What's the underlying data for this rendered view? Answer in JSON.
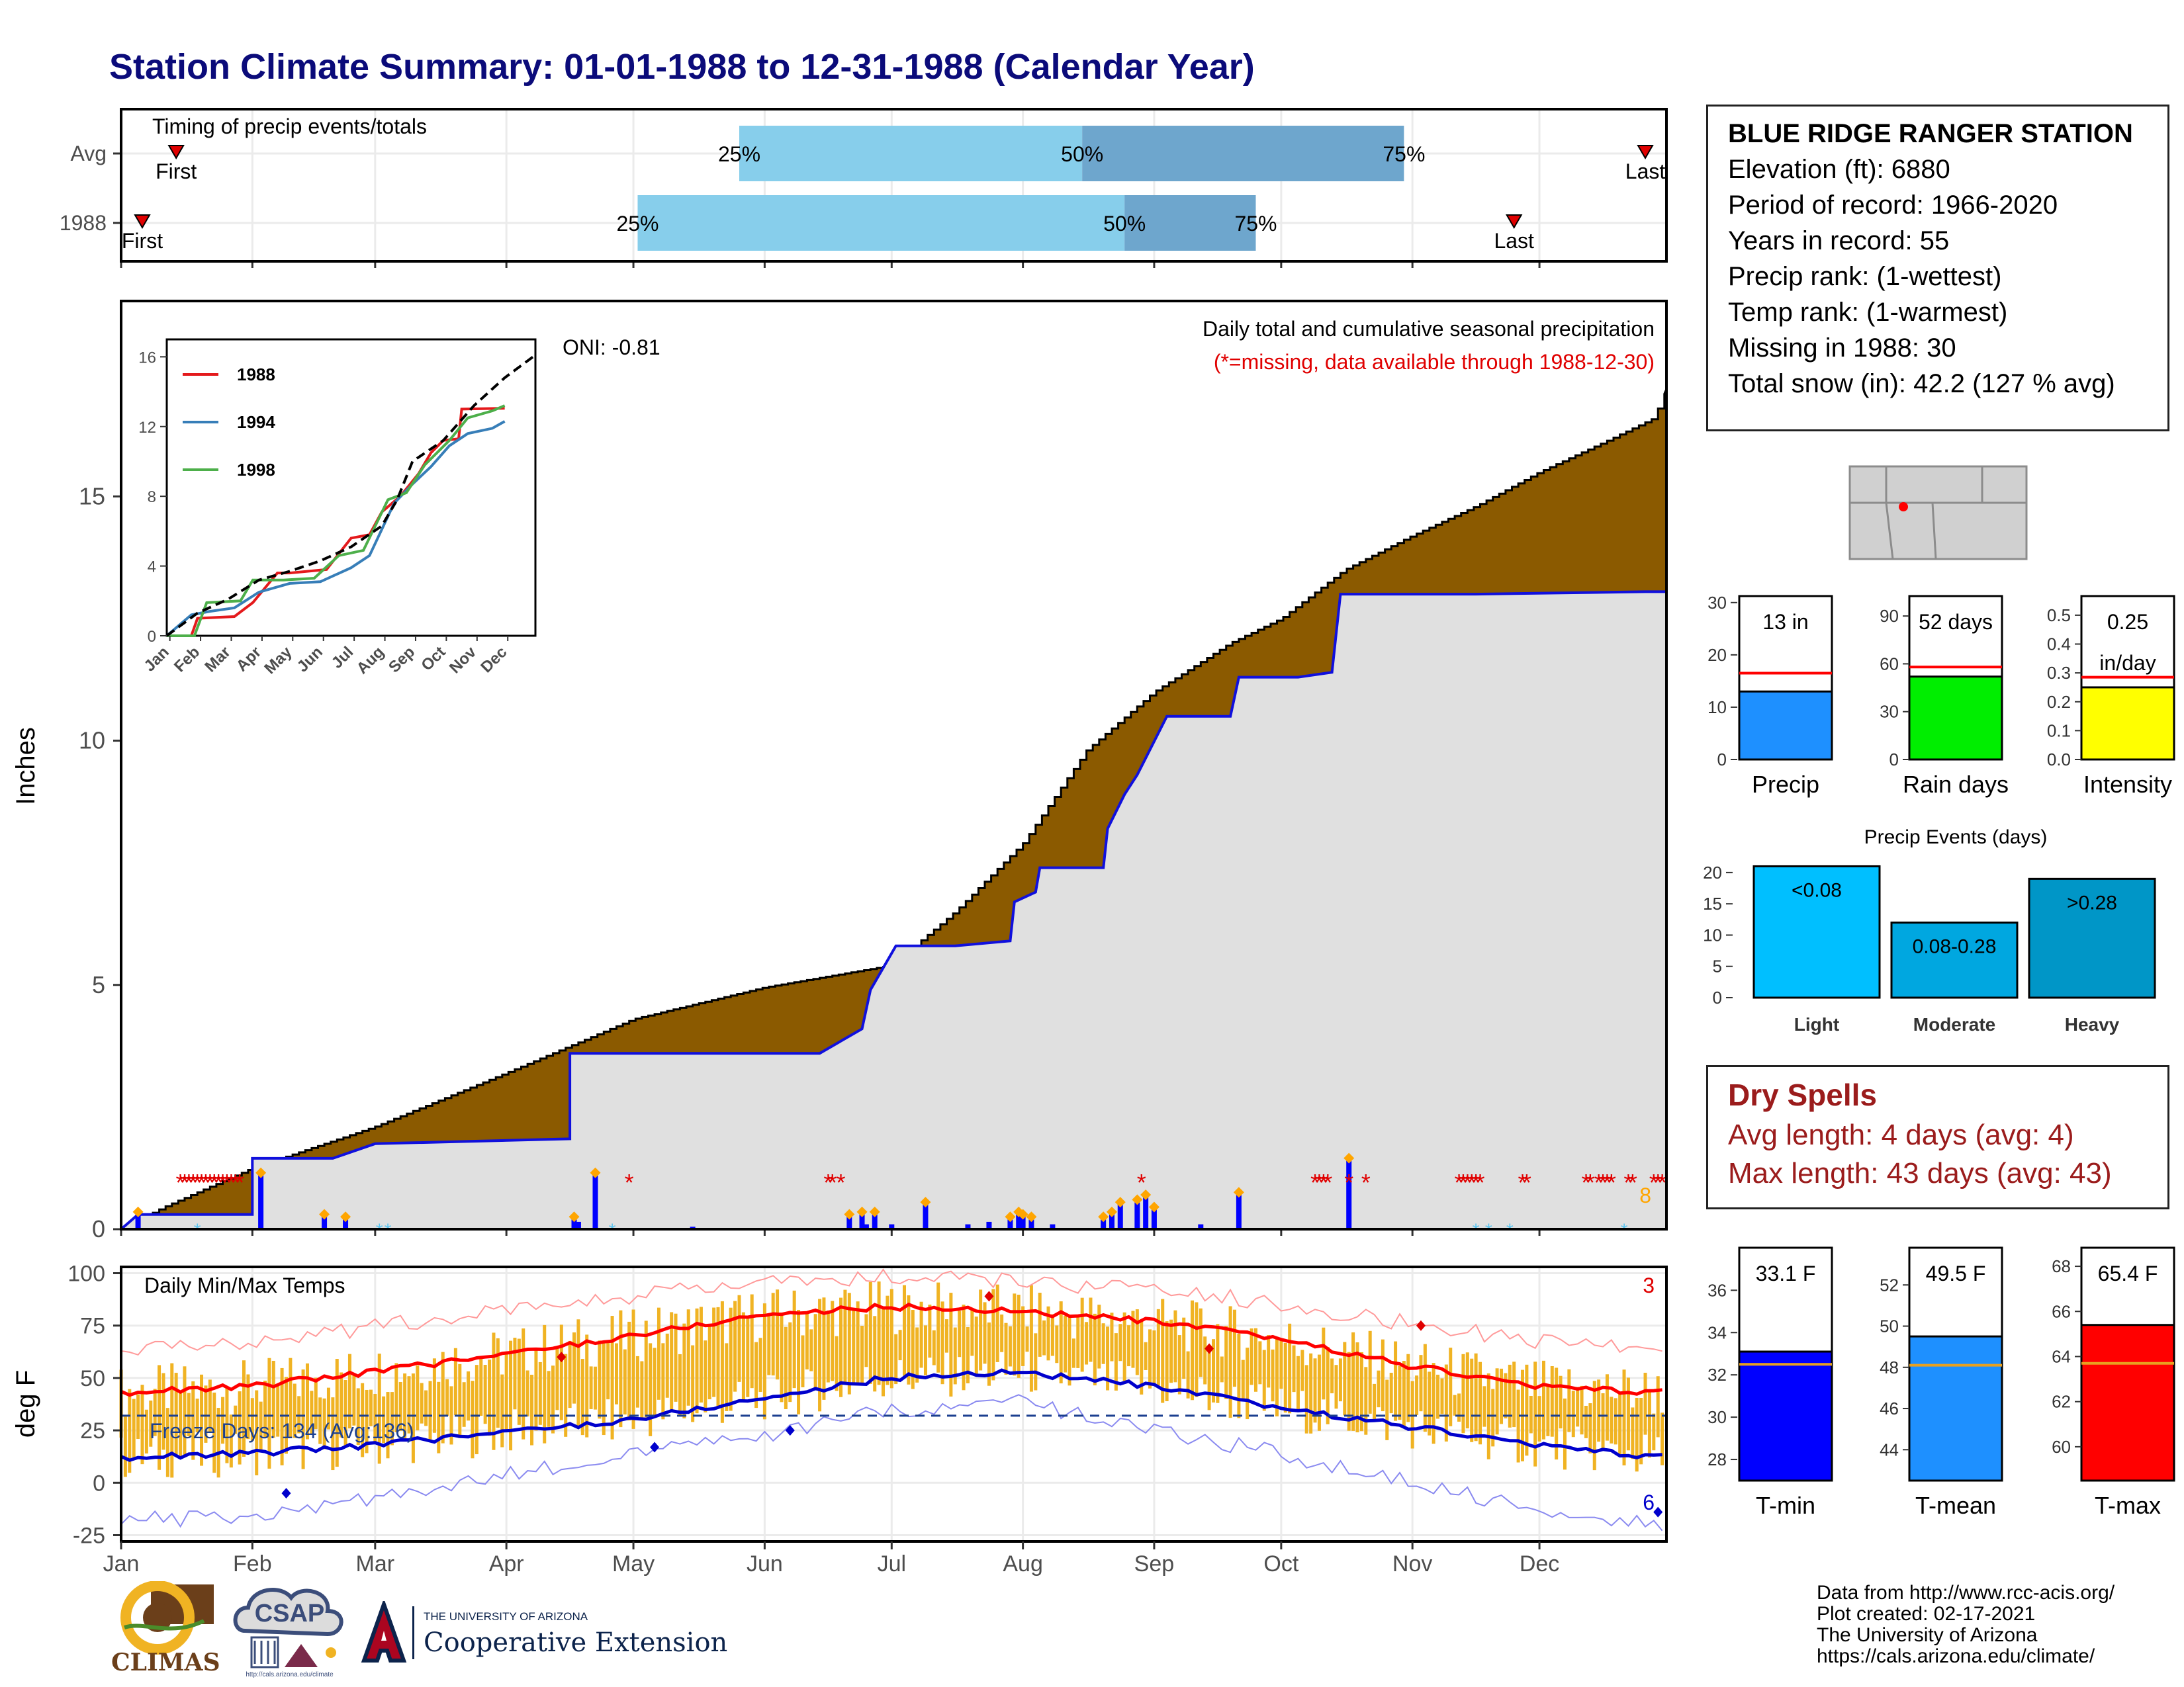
{
  "title": "Station Climate Summary: 01-01-1988 to 12-31-1988 (Calendar Year)",
  "station": {
    "name": "BLUE RIDGE RANGER STATION",
    "rows": [
      "Elevation (ft): 6880",
      "Period of record: 1966-2020",
      "Years in record: 55",
      "Precip rank:  (1-wettest)",
      "Temp rank:  (1-warmest)",
      "Missing in 1988: 30",
      "Total snow (in): 42.2 (127 % avg)"
    ]
  },
  "dry_spells": {
    "title": "Dry Spells",
    "avg_length": "Avg length: 4 days (avg: 4)",
    "max_length": "Max length: 43 days (avg: 43)"
  },
  "credits": [
    "Data from http://www.rcc-acis.org/",
    "Plot created: 02-17-2021",
    "The University of Arizona",
    "https://cals.arizona.edu/climate/"
  ],
  "logos": {
    "climas": "CLIMAS",
    "csap": "CSAP",
    "csap_url": "http://cals.arizona.edu/climate",
    "ua_small": "THE UNIVERSITY OF ARIZONA",
    "ua_big": "Cooperative Extension"
  },
  "colors": {
    "title": "#0b0b7a",
    "cumulative_fill": "#8b5a00",
    "avg_fill": "#e0e0e0",
    "cumulative_line": "#1010dd",
    "quartile_light": "#87ceeb",
    "quartile_dark": "#6ea6cd",
    "temp_bar": "#f0b323",
    "tmax": "#ff0000",
    "tmin": "#0000cc"
  },
  "months": [
    "Jan",
    "Feb",
    "Mar",
    "Apr",
    "May",
    "Jun",
    "Jul",
    "Aug",
    "Sep",
    "Oct",
    "Nov",
    "Dec"
  ],
  "chart_data": [
    {
      "id": "timing",
      "type": "bar",
      "title": "Timing of precip events/totals",
      "rows": [
        "Avg",
        "1988"
      ],
      "x": "day of year",
      "avg": {
        "first": 13,
        "q25": 146,
        "q50": 227,
        "q75": 303,
        "last": 360
      },
      "y1988": {
        "first": 5,
        "q25": 122,
        "q50": 237,
        "q75": 268,
        "last": 329
      },
      "marker_labels": {
        "first": "First",
        "last": "Last",
        "q25": "25%",
        "q50": "50%",
        "q75": "75%"
      }
    },
    {
      "id": "precip",
      "type": "area",
      "ylabel": "Inches",
      "ylim": [
        0,
        19
      ],
      "yticks": [
        0,
        5,
        10,
        15
      ],
      "annotation": "Daily total and cumulative seasonal precipitation",
      "missing_note": "(*=missing, data available through 1988-12-30)",
      "oni": "ONI: -0.81",
      "corner_label": "8",
      "series": [
        {
          "name": "avg_cumulative",
          "points": [
            [
              0,
              0
            ],
            [
              10,
              0.45
            ],
            [
              31,
              1.25
            ],
            [
              60,
              2.1
            ],
            [
              91,
              3.2
            ],
            [
              121,
              4.3
            ],
            [
              152,
              4.95
            ],
            [
              182,
              5.4
            ],
            [
              197,
              6.5
            ],
            [
              213,
              7.9
            ],
            [
              228,
              9.8
            ],
            [
              244,
              11.0
            ],
            [
              262,
              12.0
            ],
            [
              274,
              12.5
            ],
            [
              289,
              13.5
            ],
            [
              305,
              14.2
            ],
            [
              320,
              14.8
            ],
            [
              335,
              15.5
            ],
            [
              350,
              16.1
            ],
            [
              362,
              16.6
            ],
            [
              365,
              17.2
            ]
          ]
        },
        {
          "name": "cumulative_1988",
          "points": [
            [
              0,
              0
            ],
            [
              4,
              0.3
            ],
            [
              31,
              0.3
            ],
            [
              31,
              1.45
            ],
            [
              50,
              1.45
            ],
            [
              60,
              1.75
            ],
            [
              106,
              1.85
            ],
            [
              106,
              3.6
            ],
            [
              165,
              3.6
            ],
            [
              175,
              4.1
            ],
            [
              177,
              4.9
            ],
            [
              183,
              5.8
            ],
            [
              197,
              5.8
            ],
            [
              210,
              5.9
            ],
            [
              211,
              6.7
            ],
            [
              216,
              6.9
            ],
            [
              217,
              7.4
            ],
            [
              232,
              7.4
            ],
            [
              233,
              8.2
            ],
            [
              237,
              8.9
            ],
            [
              240,
              9.3
            ],
            [
              247,
              10.5
            ],
            [
              262,
              10.5
            ],
            [
              264,
              11.3
            ],
            [
              278,
              11.3
            ],
            [
              286,
              11.4
            ],
            [
              288,
              13.0
            ],
            [
              320,
              13.0
            ],
            [
              360,
              13.05
            ],
            [
              365,
              13.05
            ]
          ]
        }
      ],
      "daily_bars": [
        [
          4,
          0.3
        ],
        [
          33,
          1.1
        ],
        [
          48,
          0.25
        ],
        [
          53,
          0.2
        ],
        [
          107,
          0.2
        ],
        [
          108,
          0.15
        ],
        [
          112,
          1.1
        ],
        [
          135,
          0.05
        ],
        [
          172,
          0.25
        ],
        [
          175,
          0.3
        ],
        [
          176,
          0.1
        ],
        [
          178,
          0.3
        ],
        [
          182,
          0.1
        ],
        [
          190,
          0.5
        ],
        [
          200,
          0.1
        ],
        [
          205,
          0.15
        ],
        [
          210,
          0.2
        ],
        [
          212,
          0.3
        ],
        [
          213,
          0.25
        ],
        [
          215,
          0.2
        ],
        [
          220,
          0.1
        ],
        [
          232,
          0.2
        ],
        [
          234,
          0.3
        ],
        [
          236,
          0.5
        ],
        [
          240,
          0.55
        ],
        [
          242,
          0.65
        ],
        [
          244,
          0.4
        ],
        [
          255,
          0.1
        ],
        [
          264,
          0.7
        ],
        [
          290,
          1.4
        ]
      ],
      "missing_days": [
        14,
        15,
        16,
        17,
        18,
        19,
        20,
        21,
        22,
        23,
        24,
        25,
        26,
        27,
        28,
        120,
        167,
        168,
        170,
        241,
        282,
        283,
        284,
        285,
        290,
        294,
        316,
        317,
        318,
        319,
        320,
        321,
        331,
        332,
        346,
        347,
        349,
        350,
        351,
        352,
        356,
        357,
        362,
        363,
        364
      ],
      "snow_days": [
        18,
        61,
        63,
        116,
        320,
        323,
        328,
        355
      ]
    },
    {
      "id": "inset",
      "type": "line",
      "title": "",
      "xticks": [
        "Jan",
        "Feb",
        "Mar",
        "Apr",
        "May",
        "Jun",
        "Jul",
        "Aug",
        "Sep",
        "Oct",
        "Nov",
        "Dec"
      ],
      "yticks": [
        0,
        4,
        8,
        12,
        16
      ],
      "ylim": [
        0,
        17
      ],
      "series": [
        {
          "name": "1988",
          "color": "#e41a1c",
          "points": [
            [
              0,
              0
            ],
            [
              0.8,
              0
            ],
            [
              1.0,
              1.0
            ],
            [
              2.2,
              1.1
            ],
            [
              2.8,
              1.9
            ],
            [
              3.6,
              3.6
            ],
            [
              4.0,
              3.6
            ],
            [
              5.2,
              3.8
            ],
            [
              5.6,
              4.7
            ],
            [
              6.0,
              5.6
            ],
            [
              6.6,
              5.8
            ],
            [
              7.0,
              7.1
            ],
            [
              7.6,
              8.0
            ],
            [
              8.2,
              9.3
            ],
            [
              8.6,
              10.5
            ],
            [
              9.0,
              11.2
            ],
            [
              9.5,
              11.3
            ],
            [
              9.6,
              13.0
            ],
            [
              11.0,
              13.05
            ]
          ]
        },
        {
          "name": "1994",
          "color": "#377eb8",
          "points": [
            [
              0,
              0
            ],
            [
              0.8,
              1.2
            ],
            [
              1.4,
              1.4
            ],
            [
              2.2,
              1.6
            ],
            [
              3.0,
              2.5
            ],
            [
              4.0,
              3.0
            ],
            [
              5.0,
              3.1
            ],
            [
              6.0,
              3.9
            ],
            [
              6.6,
              4.6
            ],
            [
              7.4,
              7.6
            ],
            [
              8.0,
              8.7
            ],
            [
              8.6,
              9.7
            ],
            [
              9.2,
              10.9
            ],
            [
              9.8,
              11.6
            ],
            [
              10.6,
              11.9
            ],
            [
              11.0,
              12.3
            ]
          ]
        },
        {
          "name": "1998",
          "color": "#4daf4a",
          "points": [
            [
              0,
              0
            ],
            [
              0.9,
              0
            ],
            [
              1.3,
              1.9
            ],
            [
              2.4,
              2.0
            ],
            [
              2.8,
              3.2
            ],
            [
              3.8,
              3.2
            ],
            [
              4.8,
              3.3
            ],
            [
              5.6,
              4.6
            ],
            [
              6.4,
              4.9
            ],
            [
              7.2,
              7.8
            ],
            [
              7.8,
              8.2
            ],
            [
              8.4,
              9.8
            ],
            [
              9.2,
              11.2
            ],
            [
              9.8,
              12.5
            ],
            [
              10.6,
              12.9
            ],
            [
              11.0,
              13.2
            ]
          ]
        },
        {
          "name": "avg",
          "color": "#000000",
          "points": [
            [
              0,
              0
            ],
            [
              1.0,
              1.3
            ],
            [
              2.0,
              2.1
            ],
            [
              3.0,
              3.2
            ],
            [
              4.0,
              3.7
            ],
            [
              5.0,
              4.3
            ],
            [
              6.0,
              5.1
            ],
            [
              7.0,
              6.3
            ],
            [
              7.5,
              7.8
            ],
            [
              8.0,
              10.0
            ],
            [
              9.0,
              11.2
            ],
            [
              10.0,
              13.2
            ],
            [
              11.0,
              14.8
            ],
            [
              12.0,
              16.1
            ]
          ]
        }
      ]
    },
    {
      "id": "temps",
      "type": "line",
      "title": "Daily Min/Max Temps",
      "ylabel": "deg F",
      "ylim": [
        -28,
        103
      ],
      "yticks": [
        -25,
        0,
        25,
        50,
        75,
        100
      ],
      "freeze_label": "Freeze Days: 134 (Avg:136)",
      "freeze_line": 32,
      "corner_top": "3",
      "corner_bottom": "6",
      "avg_max": [
        [
          0,
          43
        ],
        [
          31,
          46
        ],
        [
          59,
          53
        ],
        [
          90,
          61
        ],
        [
          120,
          70
        ],
        [
          151,
          80
        ],
        [
          181,
          84
        ],
        [
          212,
          82
        ],
        [
          243,
          77
        ],
        [
          273,
          69
        ],
        [
          304,
          56
        ],
        [
          334,
          46
        ],
        [
          365,
          43
        ]
      ],
      "avg_min": [
        [
          0,
          12
        ],
        [
          31,
          14
        ],
        [
          59,
          18
        ],
        [
          90,
          24
        ],
        [
          120,
          30
        ],
        [
          151,
          40
        ],
        [
          181,
          50
        ],
        [
          212,
          53
        ],
        [
          243,
          46
        ],
        [
          273,
          36
        ],
        [
          304,
          27
        ],
        [
          334,
          18
        ],
        [
          365,
          12
        ]
      ],
      "record_max": [
        [
          0,
          62
        ],
        [
          31,
          68
        ],
        [
          59,
          74
        ],
        [
          90,
          82
        ],
        [
          120,
          89
        ],
        [
          151,
          95
        ],
        [
          181,
          98
        ],
        [
          212,
          96
        ],
        [
          243,
          92
        ],
        [
          273,
          86
        ],
        [
          304,
          76
        ],
        [
          334,
          68
        ],
        [
          365,
          64
        ]
      ],
      "record_min": [
        [
          0,
          -18
        ],
        [
          31,
          -16
        ],
        [
          59,
          -8
        ],
        [
          90,
          3
        ],
        [
          120,
          14
        ],
        [
          151,
          22
        ],
        [
          181,
          34
        ],
        [
          212,
          38
        ],
        [
          243,
          26
        ],
        [
          273,
          14
        ],
        [
          304,
          0
        ],
        [
          334,
          -12
        ],
        [
          365,
          -20
        ]
      ],
      "highlights": [
        {
          "x": 39,
          "y": -5,
          "kind": "min"
        },
        [
          104,
          60
        ],
        [
          126,
          17
        ],
        [
          158,
          25
        ],
        [
          205,
          89
        ],
        [
          257,
          64
        ],
        [
          307,
          75
        ],
        [
          363,
          -14
        ]
      ]
    },
    {
      "id": "precip_total",
      "type": "bar",
      "categories": [
        "Precip"
      ],
      "values": [
        13
      ],
      "avg": 16.5,
      "label": "13 in",
      "ylim": [
        0,
        32
      ],
      "yticks": [
        0,
        10,
        20,
        30
      ],
      "color": "#1e90ff"
    },
    {
      "id": "rain_days",
      "type": "bar",
      "categories": [
        "Rain days"
      ],
      "values": [
        52
      ],
      "avg": 58,
      "label": "52 days",
      "ylim": [
        0,
        105
      ],
      "yticks": [
        0,
        30,
        60,
        90
      ],
      "color": "#00ee00"
    },
    {
      "id": "intensity",
      "type": "bar",
      "categories": [
        "Intensity"
      ],
      "values": [
        0.25
      ],
      "avg": 0.285,
      "label": "0.25 in/day",
      "label_lines": [
        "0.25",
        "in/day"
      ],
      "ylim": [
        0,
        0.58
      ],
      "yticks": [
        0,
        0.1,
        0.2,
        0.3,
        0.4,
        0.5
      ],
      "color": "#ffff00"
    },
    {
      "id": "precip_events",
      "type": "bar",
      "title": "Precip Events (days)",
      "categories": [
        "Light",
        "Moderate",
        "Heavy"
      ],
      "bar_labels": [
        "<0.08",
        "0.08-0.28",
        ">0.28"
      ],
      "values": [
        21,
        12,
        19
      ],
      "colors": [
        "#00bfff",
        "#00a7e0",
        "#0096c7"
      ],
      "ylim": [
        0,
        22
      ],
      "yticks": [
        0,
        5,
        10,
        15,
        20
      ]
    },
    {
      "id": "tmin",
      "type": "bar",
      "categories": [
        "T-min"
      ],
      "values": [
        33.1
      ],
      "avg": 32.5,
      "label": "33.1 F",
      "ylim": [
        27,
        38.2
      ],
      "yticks": [
        28,
        30,
        32,
        34,
        36
      ],
      "color": "#0000ff"
    },
    {
      "id": "tmean",
      "type": "bar",
      "categories": [
        "T-mean"
      ],
      "values": [
        49.5
      ],
      "avg": 48.1,
      "label": "49.5 F",
      "ylim": [
        42.5,
        54
      ],
      "yticks": [
        44,
        46,
        48,
        50,
        52
      ],
      "color": "#1e90ff"
    },
    {
      "id": "tmax",
      "type": "bar",
      "categories": [
        "T-max"
      ],
      "values": [
        65.4
      ],
      "avg": 63.7,
      "label": "65.4 F",
      "ylim": [
        58.5,
        69
      ],
      "yticks": [
        60,
        62,
        64,
        66,
        68
      ],
      "color": "#ff0000"
    }
  ]
}
